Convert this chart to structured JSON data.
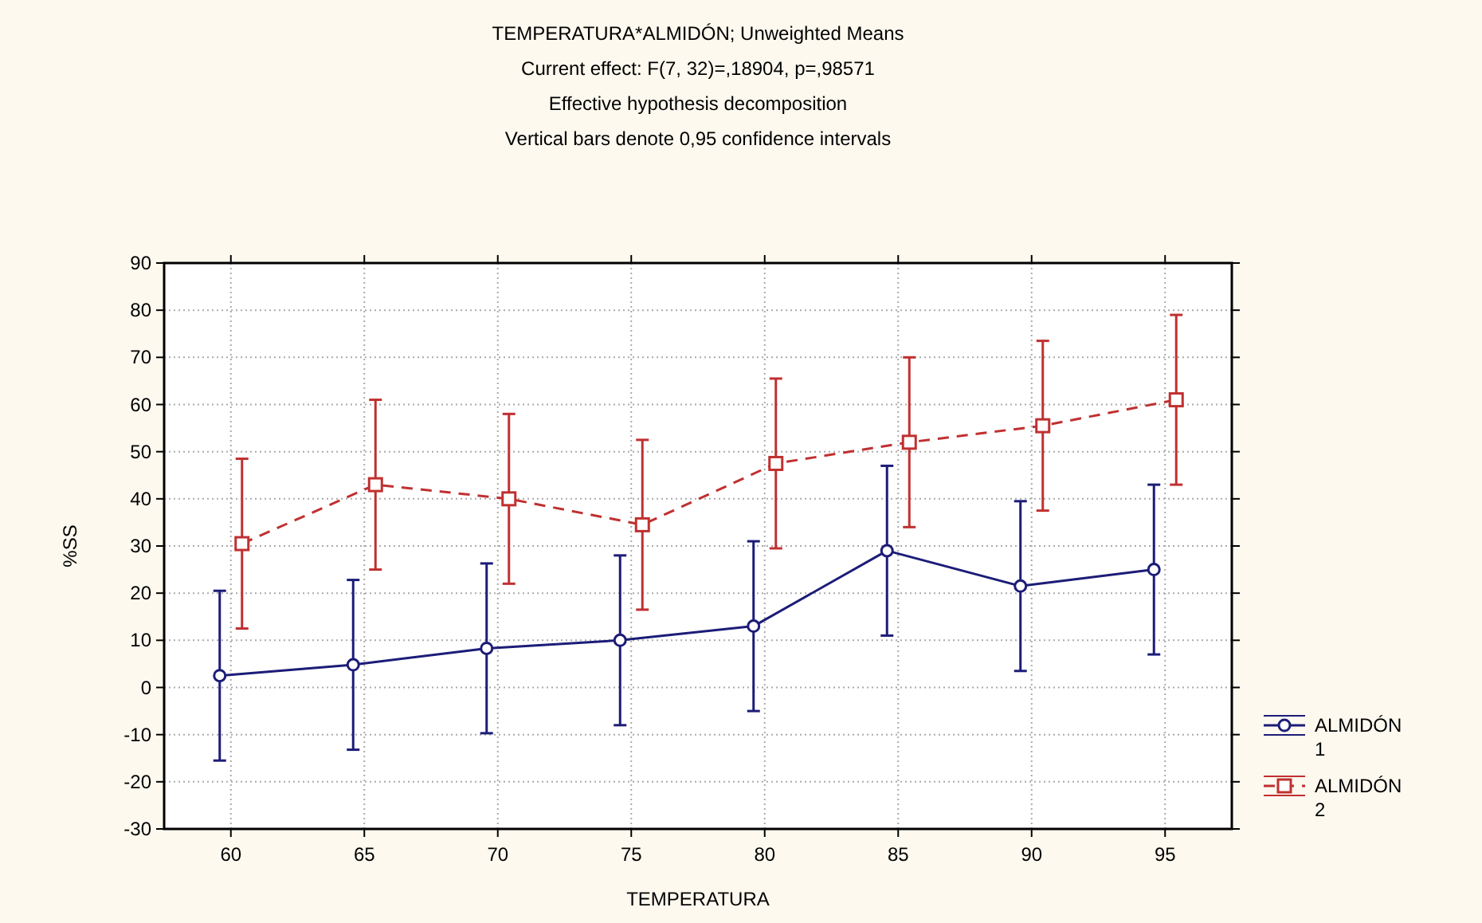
{
  "chart_data": {
    "type": "line",
    "title": "TEMPERATURA*ALMIDÓN; Unweighted Means",
    "subtitle": "Current effect: F(7, 32)=,18904, p=,98571",
    "annotations": [
      "Effective hypothesis decomposition",
      "Vertical bars denote 0,95 confidence intervals"
    ],
    "xlabel": "TEMPERATURA",
    "ylabel": "%SS",
    "categories": [
      "60",
      "65",
      "70",
      "75",
      "80",
      "85",
      "90",
      "95"
    ],
    "ylim": [
      -30,
      90
    ],
    "yticks": [
      -30,
      -20,
      -10,
      0,
      10,
      20,
      30,
      40,
      50,
      60,
      70,
      80,
      90
    ],
    "grid": true,
    "legend": "bottom right",
    "series": [
      {
        "name": "ALMIDÓN 1",
        "color": "#1c1c78",
        "marker": "circle",
        "line_style": "solid",
        "values": [
          2.5,
          4.8,
          8.3,
          10,
          13,
          29,
          21.5,
          25
        ],
        "errors": [
          18,
          18,
          18,
          18,
          18,
          18,
          18,
          18
        ]
      },
      {
        "name": "ALMIDÓN 2",
        "color": "#c03030",
        "marker": "square",
        "line_style": "dashed",
        "values": [
          30.5,
          43,
          40,
          34.5,
          47.5,
          52,
          55.5,
          61
        ],
        "errors": [
          18,
          18,
          18,
          18,
          18,
          18,
          18,
          18
        ]
      }
    ]
  }
}
